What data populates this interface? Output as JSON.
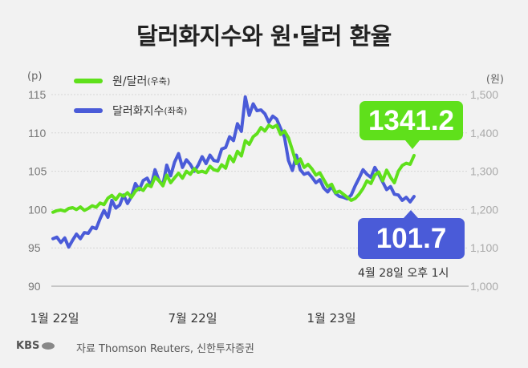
{
  "title": "달러화지수와 원·달러 환율",
  "left_unit": "(p)",
  "right_unit": "(원)",
  "legend": [
    {
      "label": "원/달러",
      "sub": "(우축)",
      "color": "#5fe01b"
    },
    {
      "label": "달러화지수",
      "sub": "(좌축)",
      "color": "#4a5bd8"
    }
  ],
  "callouts": {
    "krw": "1341.2",
    "dxy": "101.7"
  },
  "as_of": "4월 28일 오후 1시",
  "source": "자료 Thomson Reuters, 신한투자증권",
  "logo": "KBS",
  "chart_data": {
    "type": "line",
    "title": "달러화지수와 원·달러 환율",
    "x_tick_labels": [
      "1월 22일",
      "7월 22일",
      "1월 23일"
    ],
    "y_left": {
      "label": "(p)",
      "ticks": [
        90,
        95,
        100,
        105,
        110,
        115
      ],
      "range": [
        90,
        115
      ]
    },
    "y_right": {
      "label": "(원)",
      "ticks": [
        "1,000",
        "1,100",
        "1,200",
        "1,300",
        "1,400",
        "1,500"
      ],
      "range": [
        1000,
        1500
      ]
    },
    "grid": true,
    "legend_position": "top-left",
    "series": [
      {
        "name": "원/달러",
        "axis": "right",
        "color": "#5fe01b",
        "values": [
          1193,
          1197,
          1199,
          1196,
          1203,
          1205,
          1200,
          1207,
          1198,
          1203,
          1210,
          1206,
          1217,
          1213,
          1230,
          1237,
          1226,
          1240,
          1235,
          1244,
          1232,
          1248,
          1256,
          1250,
          1265,
          1260,
          1285,
          1275,
          1262,
          1290,
          1270,
          1283,
          1295,
          1282,
          1300,
          1292,
          1307,
          1297,
          1300,
          1296,
          1313,
          1304,
          1301,
          1317,
          1308,
          1340,
          1325,
          1352,
          1340,
          1380,
          1370,
          1390,
          1398,
          1414,
          1405,
          1420,
          1414,
          1420,
          1396,
          1405,
          1387,
          1355,
          1320,
          1332,
          1310,
          1318,
          1306,
          1290,
          1296,
          1278,
          1260,
          1266,
          1244,
          1248,
          1240,
          1232,
          1224,
          1229,
          1240,
          1255,
          1275,
          1268,
          1290,
          1298,
          1275,
          1303,
          1284,
          1270,
          1300,
          1315,
          1321,
          1318,
          1341.2
        ]
      },
      {
        "name": "달러화지수",
        "axis": "left",
        "color": "#4a5bd8",
        "values": [
          96.2,
          96.4,
          95.7,
          96.3,
          95.1,
          96.0,
          96.8,
          96.2,
          97.0,
          96.9,
          97.7,
          97.5,
          98.8,
          99.9,
          99.0,
          101.2,
          100.2,
          100.6,
          101.9,
          100.8,
          101.7,
          103.4,
          102.6,
          103.8,
          104.1,
          103.1,
          105.2,
          103.8,
          103.2,
          105.8,
          104.4,
          106.2,
          107.3,
          105.5,
          106.5,
          105.9,
          105.0,
          105.8,
          106.9,
          106.0,
          107.1,
          106.4,
          106.3,
          107.9,
          108.1,
          109.5,
          109.0,
          111.2,
          110.2,
          114.7,
          112.3,
          113.8,
          112.9,
          113.0,
          112.5,
          111.4,
          112.2,
          111.8,
          110.6,
          109.4,
          106.4,
          105.1,
          107.1,
          105.2,
          104.6,
          104.8,
          104.2,
          103.5,
          103.9,
          102.8,
          102.3,
          103.0,
          102.1,
          101.7,
          101.6,
          101.4,
          101.9,
          103.1,
          104.1,
          105.2,
          104.6,
          104.2,
          105.5,
          104.6,
          103.6,
          102.6,
          103.0,
          102.0,
          101.9,
          101.2,
          101.6,
          101.0,
          101.7
        ]
      }
    ]
  }
}
